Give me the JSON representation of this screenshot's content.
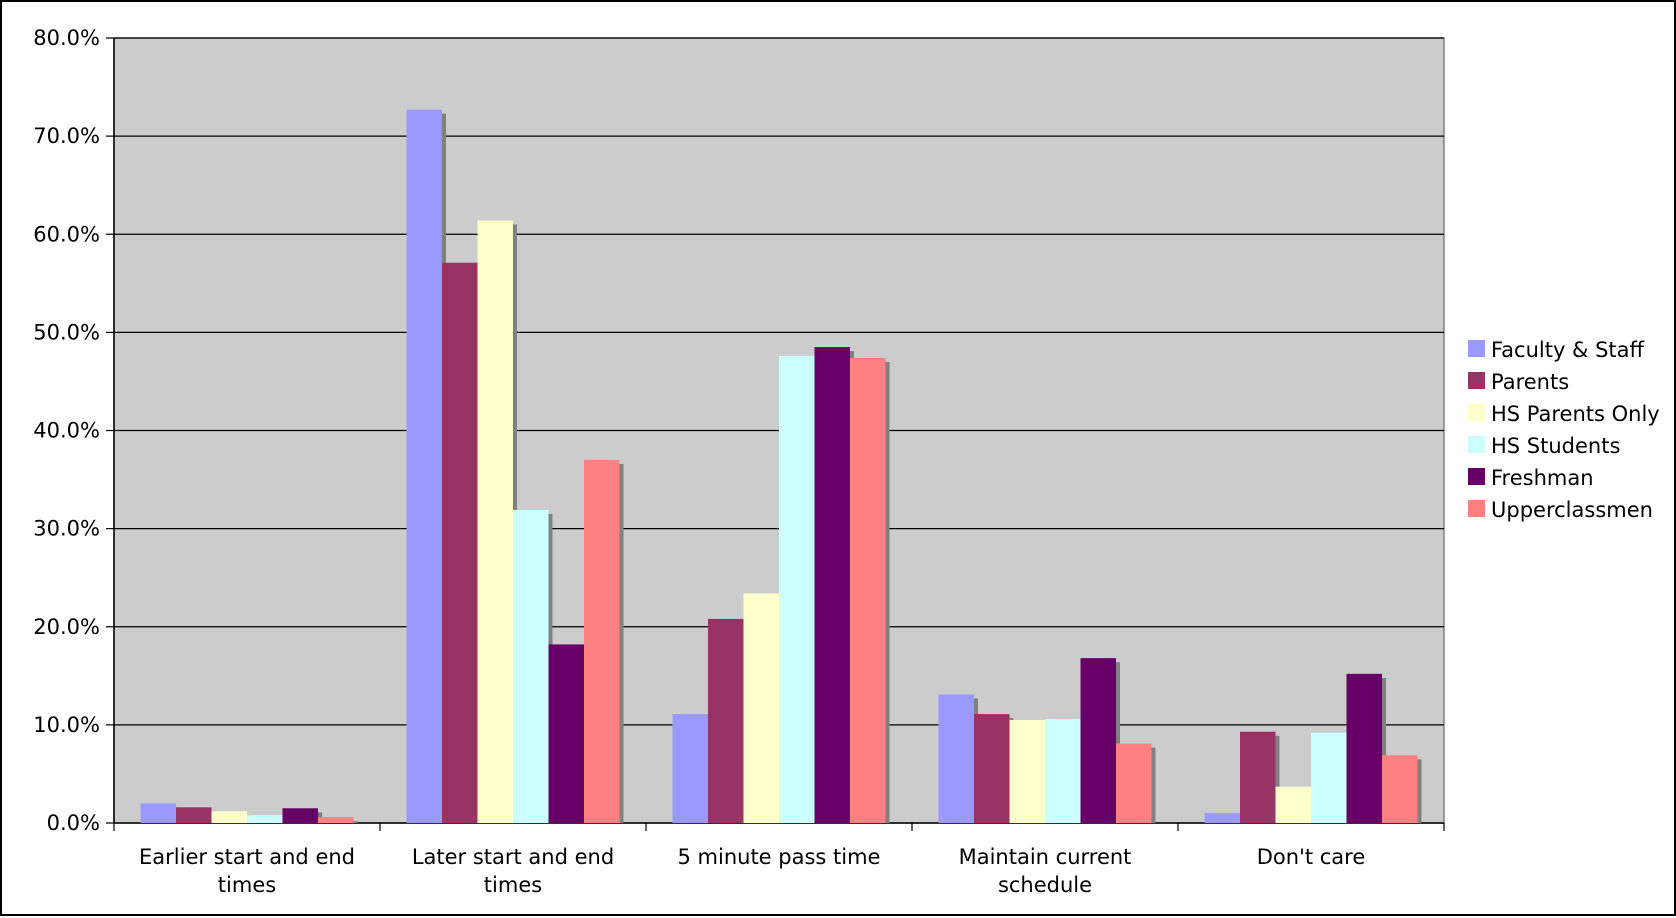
{
  "chart_data": {
    "type": "bar",
    "title": "",
    "xlabel": "",
    "ylabel": "",
    "ylim": [
      0,
      80
    ],
    "y_tick_step": 10,
    "y_tick_format": "percent_1dp",
    "grid": true,
    "plot_background": "#cccccc",
    "legend_position": "right",
    "categories": [
      [
        "Earlier start and end",
        "times"
      ],
      [
        "Later start and end",
        "times"
      ],
      [
        "5 minute pass time"
      ],
      [
        "Maintain current",
        "schedule"
      ],
      [
        "Don't care"
      ]
    ],
    "series": [
      {
        "name": "Faculty & Staff",
        "color": "#9999ff",
        "values": [
          2.0,
          72.7,
          11.1,
          13.1,
          1.0
        ]
      },
      {
        "name": "Parents",
        "color": "#993366",
        "values": [
          1.6,
          57.1,
          20.8,
          11.1,
          9.3
        ]
      },
      {
        "name": "HS Parents Only",
        "color": "#ffffcc",
        "values": [
          1.2,
          61.4,
          23.4,
          10.5,
          3.7
        ]
      },
      {
        "name": "HS Students",
        "color": "#ccffff",
        "values": [
          0.8,
          31.9,
          47.6,
          10.6,
          9.2
        ]
      },
      {
        "name": "Freshman",
        "color": "#660066",
        "values": [
          1.5,
          18.2,
          48.5,
          16.8,
          15.2
        ]
      },
      {
        "name": "Upperclassmen",
        "color": "#ff8080",
        "values": [
          0.6,
          37.0,
          47.4,
          8.1,
          6.9
        ]
      }
    ]
  }
}
